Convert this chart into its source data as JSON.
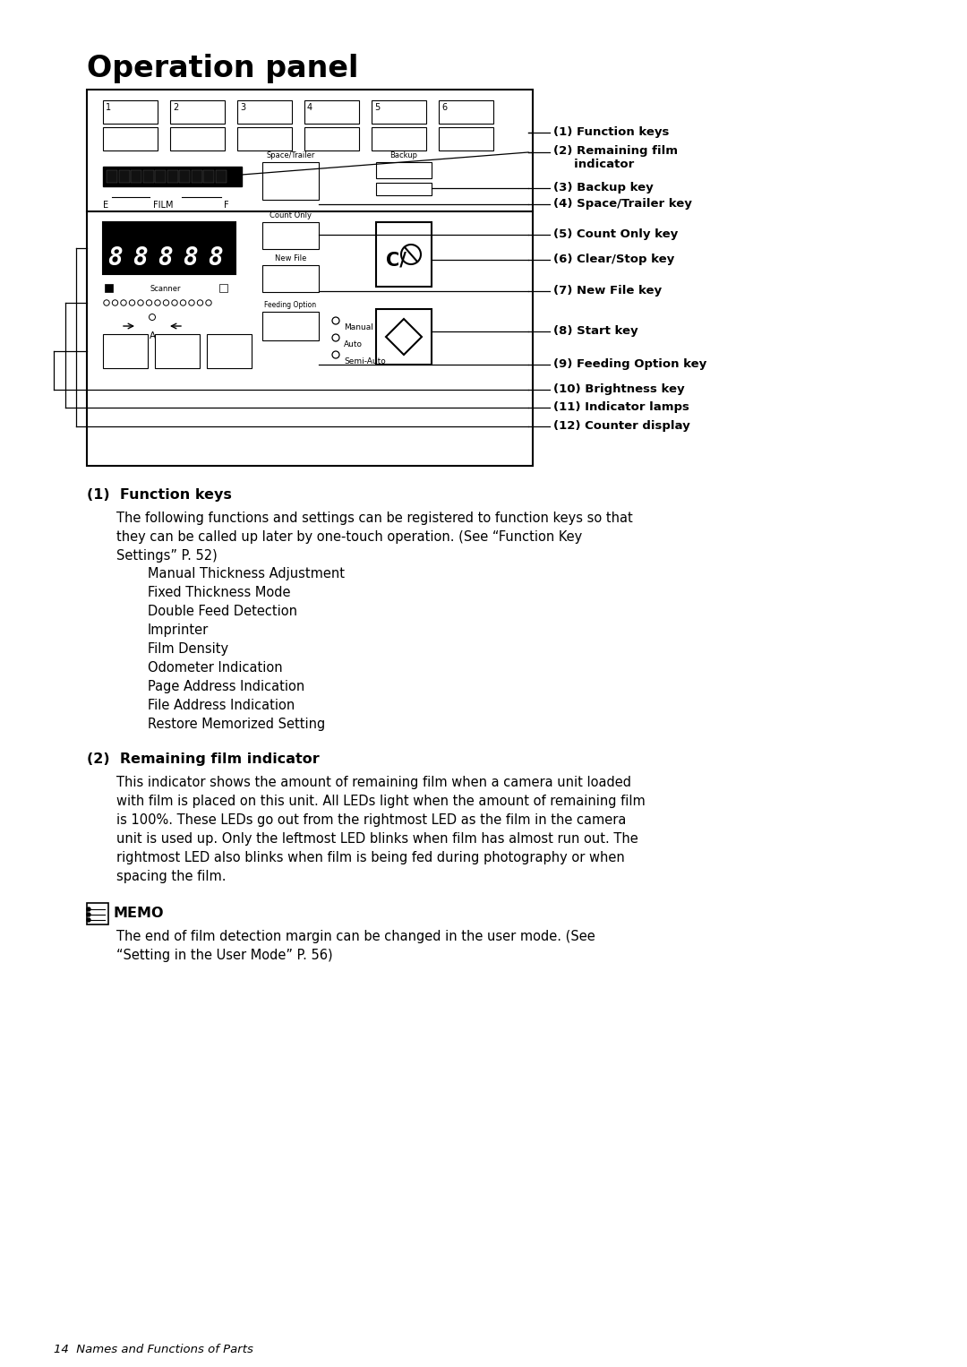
{
  "bg_color": "#ffffff",
  "title": "Operation panel",
  "label_texts": [
    "(1) Function keys",
    "(2) Remaining film\n     indicator",
    "(3) Backup key",
    "(4) Space/Trailer key",
    "(5) Count Only key",
    "(6) Clear/Stop key",
    "(7) New File key",
    "(8) Start key",
    "(9) Feeding Option key",
    "(10) Brightness key",
    "(11) Indicator lamps",
    "(12) Counter display"
  ],
  "section1_heading": "(1)  Function keys",
  "section1_body": "The following functions and settings can be registered to function keys so that\nthey can be called up later by one-touch operation. (See “Function Key\nSettings” P. 52)",
  "section1_items": [
    "Manual Thickness Adjustment",
    "Fixed Thickness Mode",
    "Double Feed Detection",
    "Imprinter",
    "Film Density",
    "Odometer Indication",
    "Page Address Indication",
    "File Address Indication",
    "Restore Memorized Setting"
  ],
  "section2_heading": "(2)  Remaining film indicator",
  "section2_body": "This indicator shows the amount of remaining film when a camera unit loaded\nwith film is placed on this unit. All LEDs light when the amount of remaining film\nis 100%. These LEDs go out from the rightmost LED as the film in the camera\nunit is used up. Only the leftmost LED blinks when film has almost run out. The\nrightmost LED also blinks when film is being fed during photography or when\nspacing the film.",
  "memo_heading": "MEMO",
  "memo_body": "The end of film detection margin can be changed in the user mode. (See\n“Setting in the User Mode” P. 56)",
  "footer": "14  Names and Functions of Parts"
}
